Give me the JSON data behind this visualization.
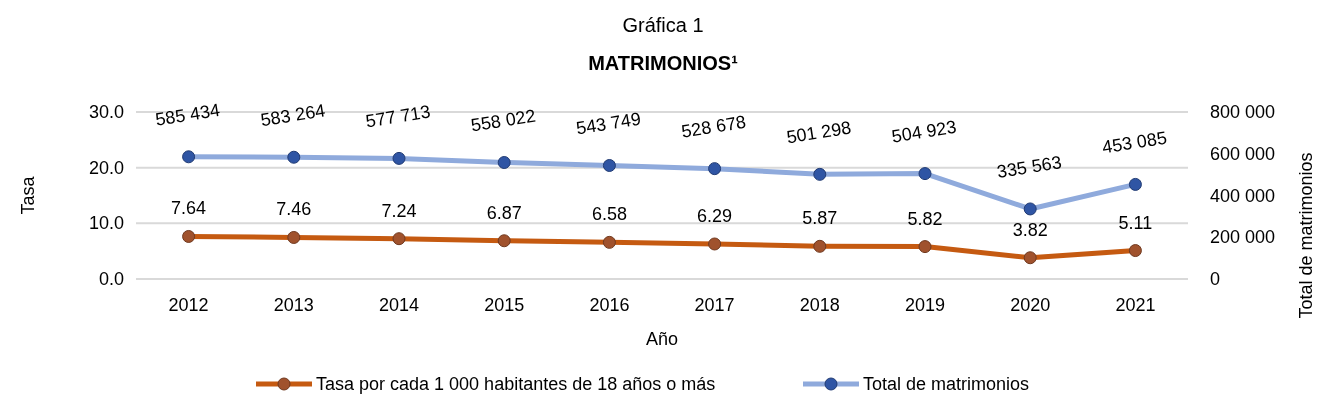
{
  "chart_data": {
    "type": "line",
    "title": "Gráfica 1",
    "subtitle": "MATRIMONIOS¹",
    "xlabel": "Año",
    "ylabel": "Tasa",
    "y2label": "Total de matrimonios",
    "categories": [
      "2012",
      "2013",
      "2014",
      "2015",
      "2016",
      "2017",
      "2018",
      "2019",
      "2020",
      "2021"
    ],
    "series": [
      {
        "name": "Tasa por cada 1 000 habitantes de 18 años o más",
        "color": "#c55a11",
        "values": [
          7.64,
          7.46,
          7.24,
          6.87,
          6.58,
          6.29,
          5.87,
          5.82,
          3.82,
          5.11
        ],
        "value_labels": [
          "7.64",
          "7.46",
          "7.24",
          "6.87",
          "6.58",
          "6.29",
          "5.87",
          "5.82",
          "3.82",
          "5.11"
        ]
      },
      {
        "name": "Total de matrimonios",
        "color": "#8faadc",
        "axis": "y2",
        "values": [
          585434,
          583264,
          577713,
          558022,
          543749,
          528678,
          501298,
          504923,
          335563,
          453085
        ],
        "value_labels": [
          "585 434",
          "583 264",
          "577 713",
          "558 022",
          "543 749",
          "528 678",
          "501 298",
          "504 923",
          "335 563",
          "453 085"
        ]
      }
    ],
    "ylim": [
      0,
      30
    ],
    "yticks": [
      {
        "value": 0,
        "label": "0.0"
      },
      {
        "value": 10,
        "label": "10.0"
      },
      {
        "value": 20,
        "label": "20.0"
      },
      {
        "value": 30,
        "label": "30.0"
      }
    ],
    "y2lim": [
      0,
      800000
    ],
    "y2ticks": [
      {
        "value": 0,
        "label": "0"
      },
      {
        "value": 200000,
        "label": "200 000"
      },
      {
        "value": 400000,
        "label": "400 000"
      },
      {
        "value": 600000,
        "label": "600 000"
      },
      {
        "value": 800000,
        "label": "800 000"
      }
    ],
    "grid": "y",
    "legend": "bottom",
    "marker": "circle",
    "line_style": "solid"
  }
}
